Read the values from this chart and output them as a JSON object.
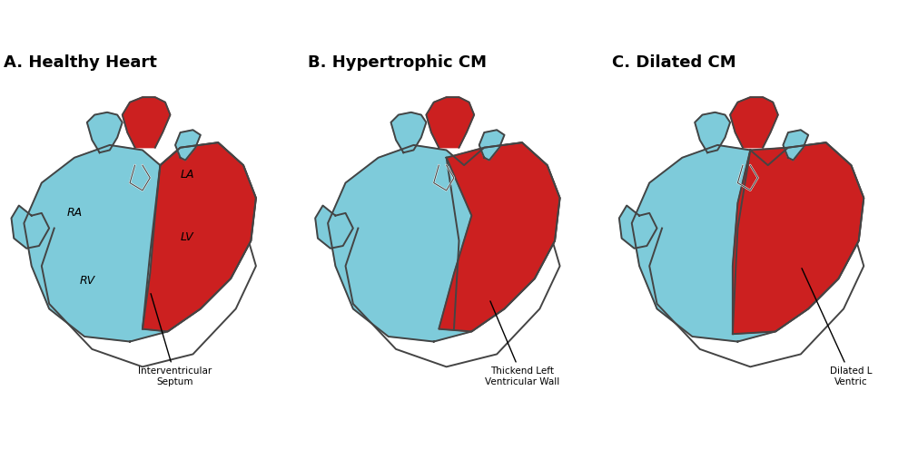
{
  "bg_color": "#ffffff",
  "title_A": "A. Healthy Heart",
  "title_B": "B. Hypertrophic CM",
  "title_C": "C. Dilated CM",
  "title_fontsize": 13,
  "red_color": "#cc2020",
  "blue_color": "#7ecbda",
  "outline_color": "#444444",
  "annotation_A": "Interventricular\nSeptum",
  "annotation_B": "Thickend Left\nVentricular Wall",
  "annotation_C": "Dilated L\nVentric"
}
